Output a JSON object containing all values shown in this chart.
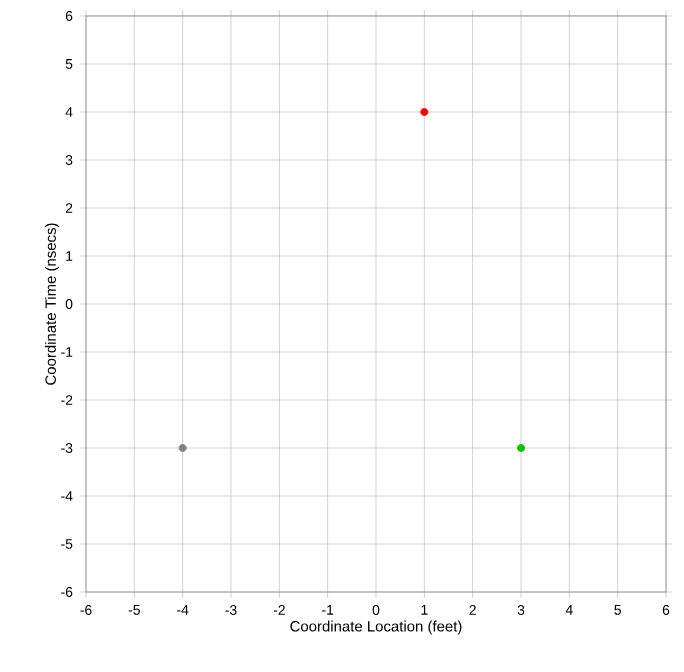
{
  "chart_data": {
    "type": "scatter",
    "xlabel": "Coordinate Location (feet)",
    "ylabel": "Coordinate Time (nsecs)",
    "x": [
      1,
      3,
      -4
    ],
    "values": [
      4,
      -3,
      -3
    ],
    "colors": [
      "#ff0000",
      "#00c800",
      "#808080"
    ],
    "xlim": [
      -6,
      6
    ],
    "ylim": [
      -6,
      6
    ],
    "xticks": [
      -6,
      -5,
      -4,
      -3,
      -2,
      -1,
      0,
      1,
      2,
      3,
      4,
      5,
      6
    ],
    "yticks": [
      -6,
      -5,
      -4,
      -3,
      -2,
      -1,
      0,
      1,
      2,
      3,
      4,
      5,
      6
    ],
    "grid": true,
    "marker": "circle"
  }
}
